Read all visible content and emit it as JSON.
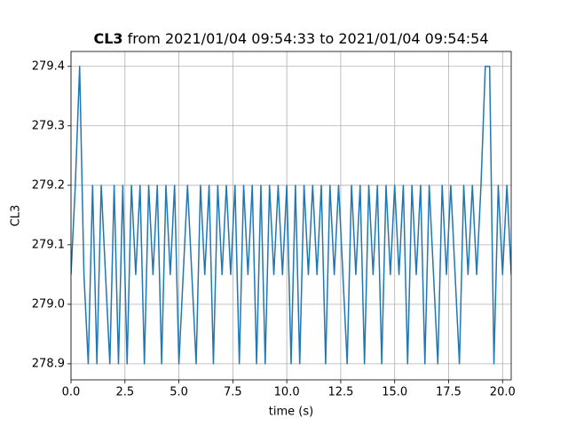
{
  "chart_data": {
    "type": "line",
    "title": {
      "variable": "CL3",
      "text": "from 2021/01/04 09:54:33 to 2021/01/04 09:54:54"
    },
    "xlabel": "time (s)",
    "ylabel": "CL3",
    "xlim": [
      0,
      20.4
    ],
    "ylim": [
      278.873,
      279.425
    ],
    "xticks": [
      {
        "value": 0,
        "label": "0.0"
      },
      2.5,
      {
        "value": 5,
        "label": "5.0"
      },
      7.5,
      {
        "value": 10,
        "label": "10.0"
      },
      12.5,
      {
        "value": 15,
        "label": "15.0"
      },
      17.5,
      {
        "value": 20,
        "label": "20.0"
      }
    ],
    "yticks": [
      278.9,
      {
        "value": 279,
        "label": "279.0"
      },
      279.1,
      279.2,
      279.3,
      279.4
    ],
    "grid": true,
    "x": [
      0,
      0.2,
      0.4,
      0.6,
      0.8,
      1,
      1.2,
      1.4,
      1.6,
      1.8,
      2,
      2.2,
      2.4,
      2.6,
      2.8,
      3,
      3.2,
      3.4,
      3.6,
      3.8,
      4,
      4.2,
      4.4,
      4.6,
      4.8,
      5,
      5.2,
      5.4,
      5.6,
      5.8,
      6,
      6.2,
      6.4,
      6.6,
      6.8,
      7,
      7.2,
      7.4,
      7.6,
      7.8,
      8,
      8.2,
      8.4,
      8.6,
      8.8,
      9,
      9.2,
      9.4,
      9.6,
      9.8,
      10,
      10.2,
      10.4,
      10.6,
      10.8,
      11,
      11.2,
      11.4,
      11.6,
      11.8,
      12,
      12.2,
      12.4,
      12.6,
      12.8,
      13,
      13.2,
      13.4,
      13.6,
      13.8,
      14,
      14.2,
      14.4,
      14.6,
      14.8,
      15,
      15.2,
      15.4,
      15.6,
      15.8,
      16,
      16.2,
      16.4,
      16.6,
      16.8,
      17,
      17.2,
      17.4,
      17.6,
      17.8,
      18,
      18.2,
      18.4,
      18.6,
      18.8,
      19,
      19.2,
      19.4,
      19.6,
      19.8,
      20,
      20.2,
      20.4
    ],
    "series": [
      {
        "color": "#1f77b4",
        "values": [
          279.05,
          279.2,
          279.4,
          279.05,
          278.9,
          279.2,
          278.9,
          279.2,
          279.05,
          278.9,
          279.2,
          278.9,
          279.2,
          278.9,
          279.2,
          279.05,
          279.2,
          278.9,
          279.2,
          279.05,
          279.2,
          278.9,
          279.2,
          279.05,
          279.2,
          278.9,
          279.05,
          279.2,
          279.05,
          278.9,
          279.2,
          279.05,
          279.2,
          278.9,
          279.2,
          279.05,
          279.2,
          279.05,
          279.2,
          278.9,
          279.2,
          279.05,
          279.2,
          278.9,
          279.2,
          278.9,
          279.2,
          279.05,
          279.2,
          279.05,
          279.2,
          278.9,
          279.2,
          278.9,
          279.2,
          279.05,
          279.2,
          279.05,
          279.2,
          278.9,
          279.2,
          279.05,
          279.2,
          279.05,
          278.9,
          279.2,
          279.05,
          279.2,
          278.9,
          279.2,
          279.05,
          279.2,
          278.9,
          279.2,
          279.05,
          279.2,
          279.05,
          279.2,
          278.9,
          279.2,
          279.05,
          279.2,
          278.9,
          279.2,
          279.05,
          278.9,
          279.2,
          279.05,
          279.2,
          279.05,
          278.9,
          279.2,
          279.05,
          279.2,
          279.05,
          279.2,
          279.4,
          279.4,
          278.9,
          279.2,
          279.05,
          279.2,
          279.05
        ]
      }
    ]
  }
}
